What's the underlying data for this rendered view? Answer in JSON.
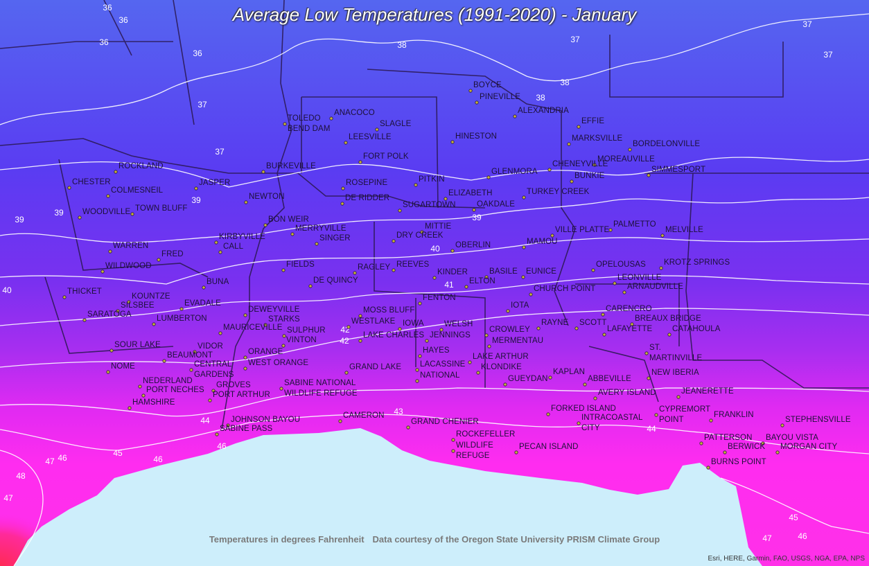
{
  "title": "Average Low Temperatures (1991-2020) - January",
  "footer": {
    "units": "Temperatures in degrees Fahrenheit",
    "source": "Data courtesy of the Oregon State University PRISM Climate Group"
  },
  "attribution": "Esri, HERE, Garmin, FAO, USGS, NGA, EPA, NPS",
  "cities": [
    "BOYCE",
    "PINEVILLE",
    "ALEXANDRIA",
    "ANACOCO",
    "TOLEDO BEND DAM",
    "SLAGLE",
    "LEESVILLE",
    "HINESTON",
    "EFFIE",
    "MARKSVILLE",
    "BORDELONVILLE",
    "FORT POLK",
    "MOREAUVILLE",
    "CHENEYVILLE",
    "SIMMESPORT",
    "ROCKLAND",
    "BURKEVILLE",
    "GLENMORA",
    "BUNKIE",
    "CHESTER",
    "JASPER",
    "ROSEPINE",
    "PITKIN",
    "COLMESNEIL",
    "ELIZABETH",
    "TURKEY CREEK",
    "NEWTON",
    "DE RIDDER",
    "SUGARTOWN",
    "OAKDALE",
    "WOODVILLE",
    "TOWN BLUFF",
    "BON WEIR",
    "MERRYVILLE",
    "PALMETTO",
    "MITTIE",
    "MELVILLE",
    "VILLE PLATTE",
    "DRY CREEK",
    "KIRBYVILLE",
    "CALL",
    "SINGER",
    "MAMOU",
    "WARREN",
    "OBERLIN",
    "FRED",
    "KROTZ SPRINGS",
    "FIELDS",
    "OPELOUSAS",
    "WILDWOOD",
    "RAGLEY",
    "REEVES",
    "KINDER",
    "BASILE",
    "EUNICE",
    "ELTON",
    "LEONVILLE",
    "DE QUINCY",
    "BUNA",
    "ARNAUDVILLE",
    "CHURCH POINT",
    "THICKET",
    "KOUNTZE",
    "FENTON",
    "EVADALE",
    "SILSBEE",
    "IOTA",
    "CARENCRO",
    "DEWEYVILLE",
    "MOSS BLUFF",
    "SARATOGA",
    "LUMBERTON",
    "STARKS",
    "BREAUX BRIDGE",
    "WESTLAKE",
    "IOWA",
    "WELSH",
    "RAYNE",
    "SCOTT",
    "MAURICEVILLE",
    "SULPHUR",
    "LAFAYETTE",
    "CROWLEY",
    "CATAHOULA",
    "LAKE CHARLES",
    "JENNINGS",
    "VINTON",
    "MERMENTAU",
    "SOUR LAKE",
    "VIDOR",
    "ST. MARTINVILLE",
    "HAYES",
    "ORANGE",
    "BEAUMONT",
    "LAKE ARTHUR",
    "CENTRAL GARDENS",
    "LACASSINE",
    "WEST ORANGE",
    "NOME",
    "GRAND LAKE",
    "KLONDIKE",
    "KAPLAN",
    "NEW IBERIA",
    "NATIONAL",
    "SABINE NATIONAL WILDLIFE REFUGE",
    "GROVES",
    "NEDERLAND",
    "PORT NECHES",
    "PORT ARTHUR",
    "ABBEVILLE",
    "GUEYDAN",
    "JEANERETTE",
    "AVERY ISLAND",
    "HAMSHIRE",
    "FORKED ISLAND",
    "CYPREMORT POINT",
    "CAMERON",
    "FRANKLIN",
    "JOHNSON BAYOU",
    "INTRACOASTAL CITY",
    "GRAND CHENIER",
    "STEPHENSVILLE",
    "SABINE PASS",
    "ROCKEFELLER",
    "PATTERSON",
    "BAYOU VISTA",
    "BERWICK",
    "MORGAN CITY",
    "WILDLIFE REFUGE",
    "PECAN ISLAND",
    "BURNS POINT"
  ],
  "isotherm_labels": [
    36,
    36,
    36,
    36,
    38,
    37,
    37,
    37,
    37,
    37,
    38,
    38,
    39,
    39,
    39,
    39,
    40,
    40,
    41,
    42,
    42,
    43,
    44,
    44,
    45,
    46,
    46,
    46,
    47,
    48,
    47,
    45,
    47,
    46
  ]
}
